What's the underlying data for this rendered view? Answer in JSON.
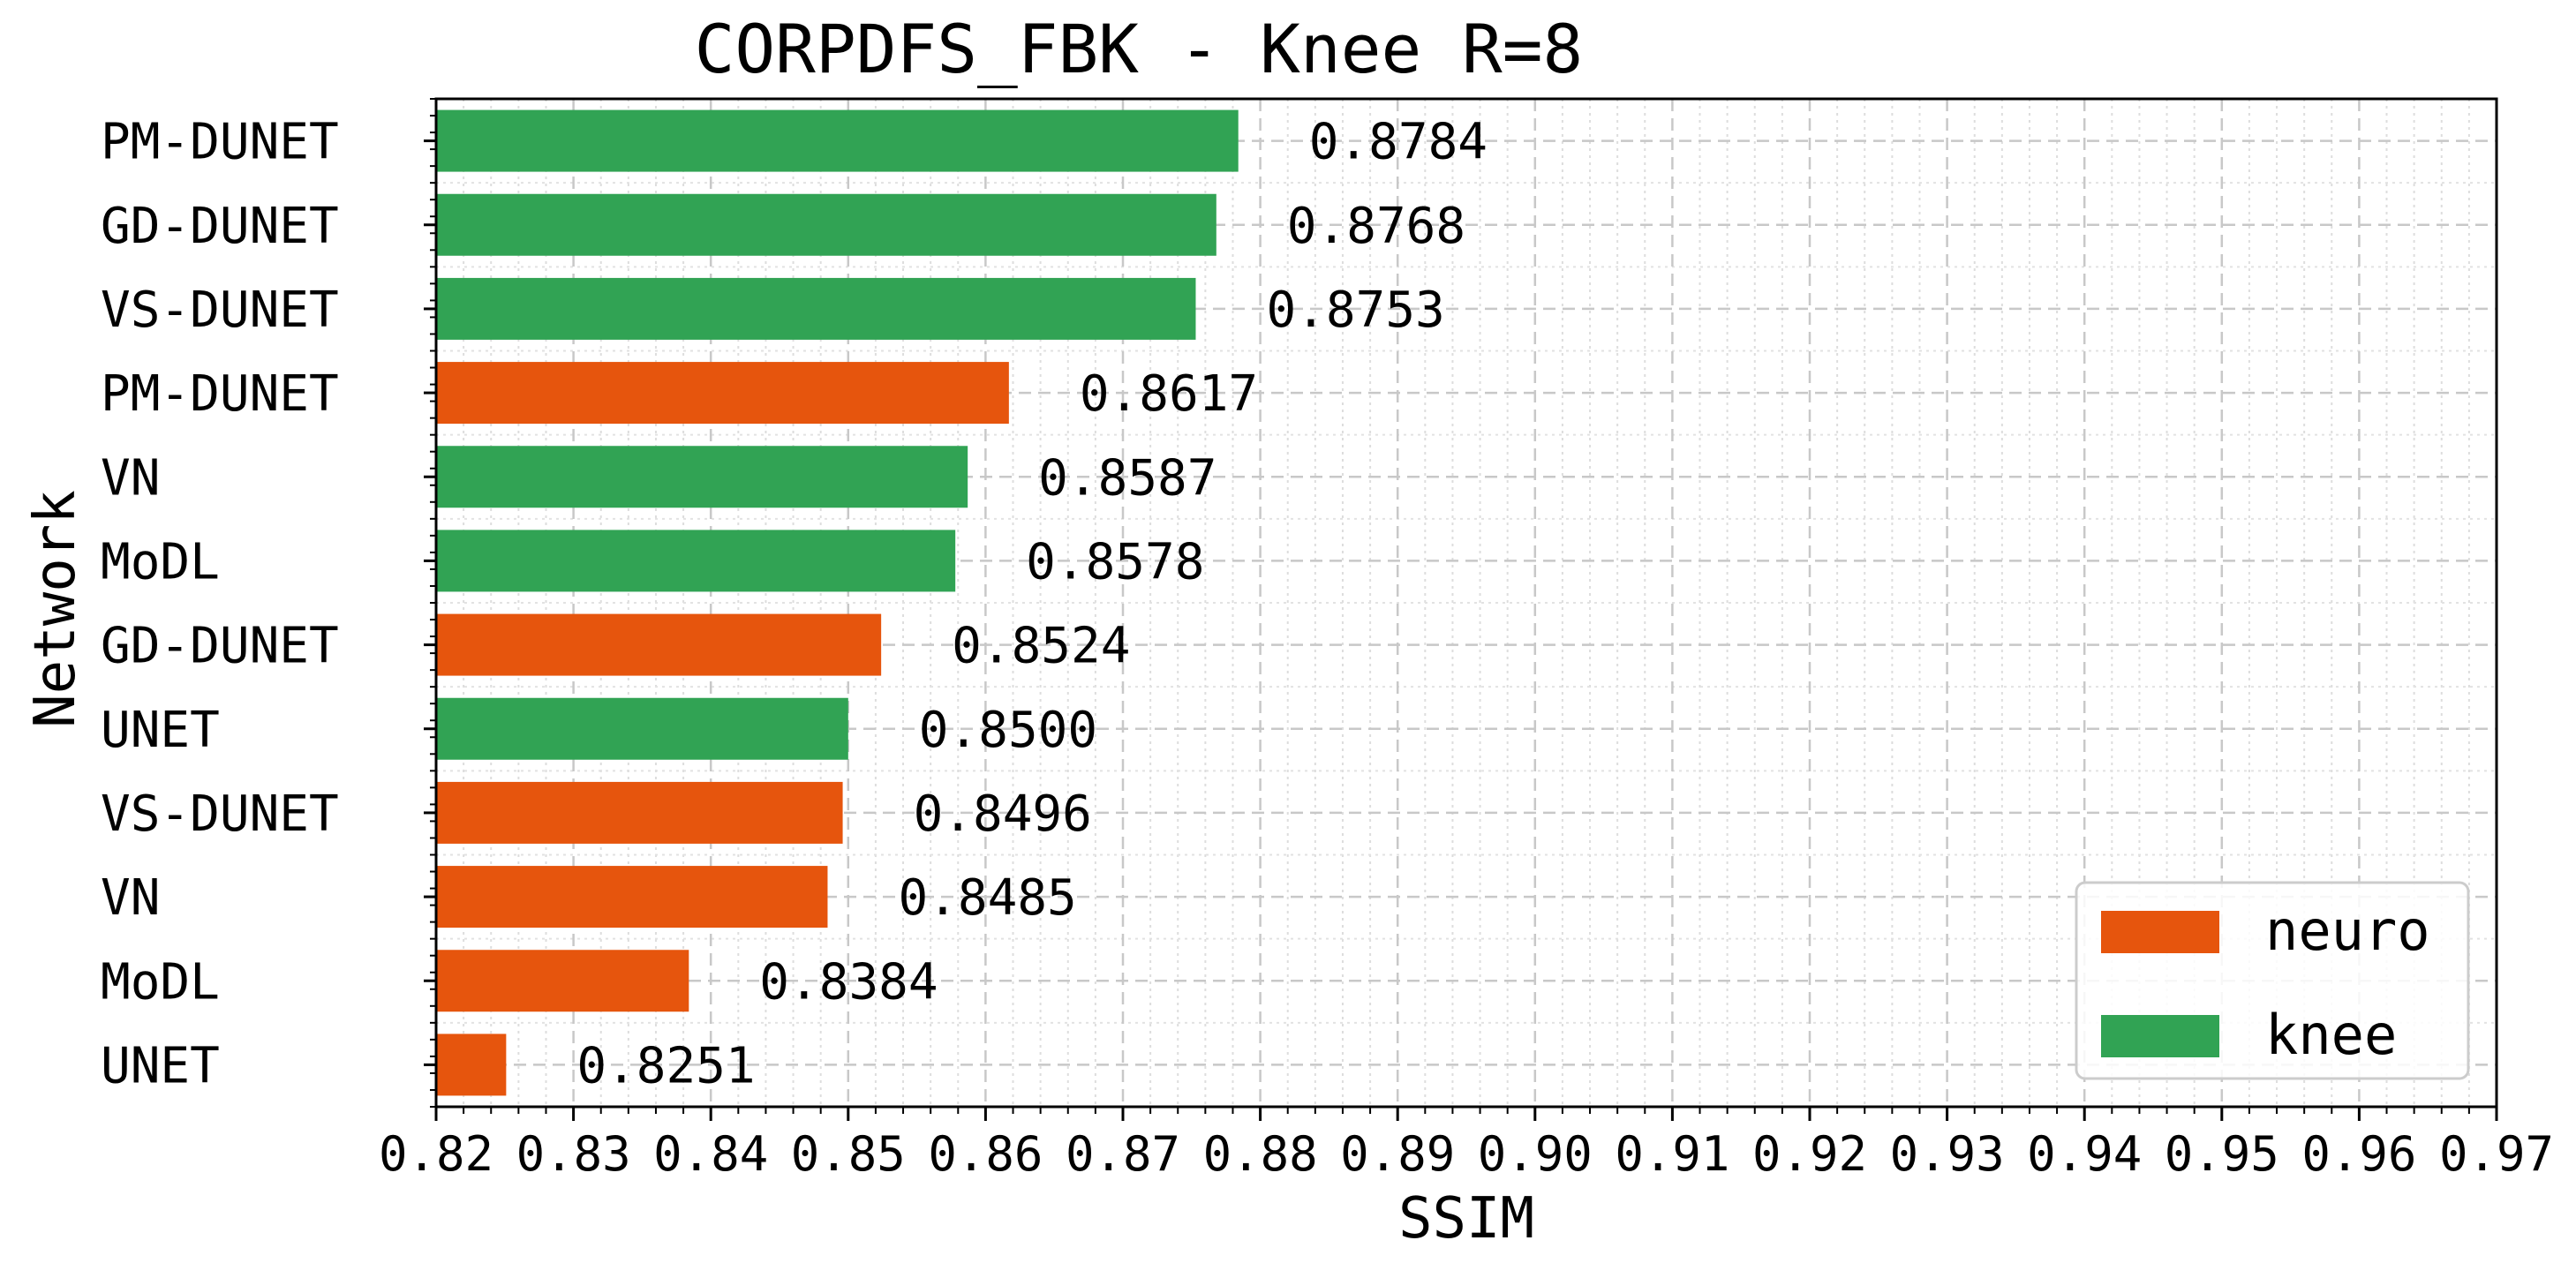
{
  "chart_data": {
    "type": "bar",
    "orientation": "horizontal",
    "title": "CORPDFS_FBK - Knee R=8",
    "xlabel": "SSIM",
    "ylabel": "Network",
    "xlim": [
      0.82,
      0.97
    ],
    "x_ticks": [
      "0.82",
      "0.83",
      "0.84",
      "0.85",
      "0.86",
      "0.87",
      "0.88",
      "0.89",
      "0.90",
      "0.91",
      "0.92",
      "0.93",
      "0.94",
      "0.95",
      "0.96",
      "0.97"
    ],
    "grid": true,
    "legend_position": "bottom-right",
    "legend": [
      {
        "name": "neuro",
        "color": "#e6550d"
      },
      {
        "name": "knee",
        "color": "#31a354"
      }
    ],
    "bars": [
      {
        "label": "PM-DUNET",
        "value": 0.8784,
        "value_label": "0.8784",
        "series": "knee"
      },
      {
        "label": "GD-DUNET",
        "value": 0.8768,
        "value_label": "0.8768",
        "series": "knee"
      },
      {
        "label": "VS-DUNET",
        "value": 0.8753,
        "value_label": "0.8753",
        "series": "knee"
      },
      {
        "label": "PM-DUNET",
        "value": 0.8617,
        "value_label": "0.8617",
        "series": "neuro"
      },
      {
        "label": "VN",
        "value": 0.8587,
        "value_label": "0.8587",
        "series": "knee"
      },
      {
        "label": "MoDL",
        "value": 0.8578,
        "value_label": "0.8578",
        "series": "knee"
      },
      {
        "label": "GD-DUNET",
        "value": 0.8524,
        "value_label": "0.8524",
        "series": "neuro"
      },
      {
        "label": "UNET",
        "value": 0.85,
        "value_label": "0.8500",
        "series": "knee"
      },
      {
        "label": "VS-DUNET",
        "value": 0.8496,
        "value_label": "0.8496",
        "series": "neuro"
      },
      {
        "label": "VN",
        "value": 0.8485,
        "value_label": "0.8485",
        "series": "neuro"
      },
      {
        "label": "MoDL",
        "value": 0.8384,
        "value_label": "0.8384",
        "series": "neuro"
      },
      {
        "label": "UNET",
        "value": 0.8251,
        "value_label": "0.8251",
        "series": "neuro"
      }
    ]
  }
}
